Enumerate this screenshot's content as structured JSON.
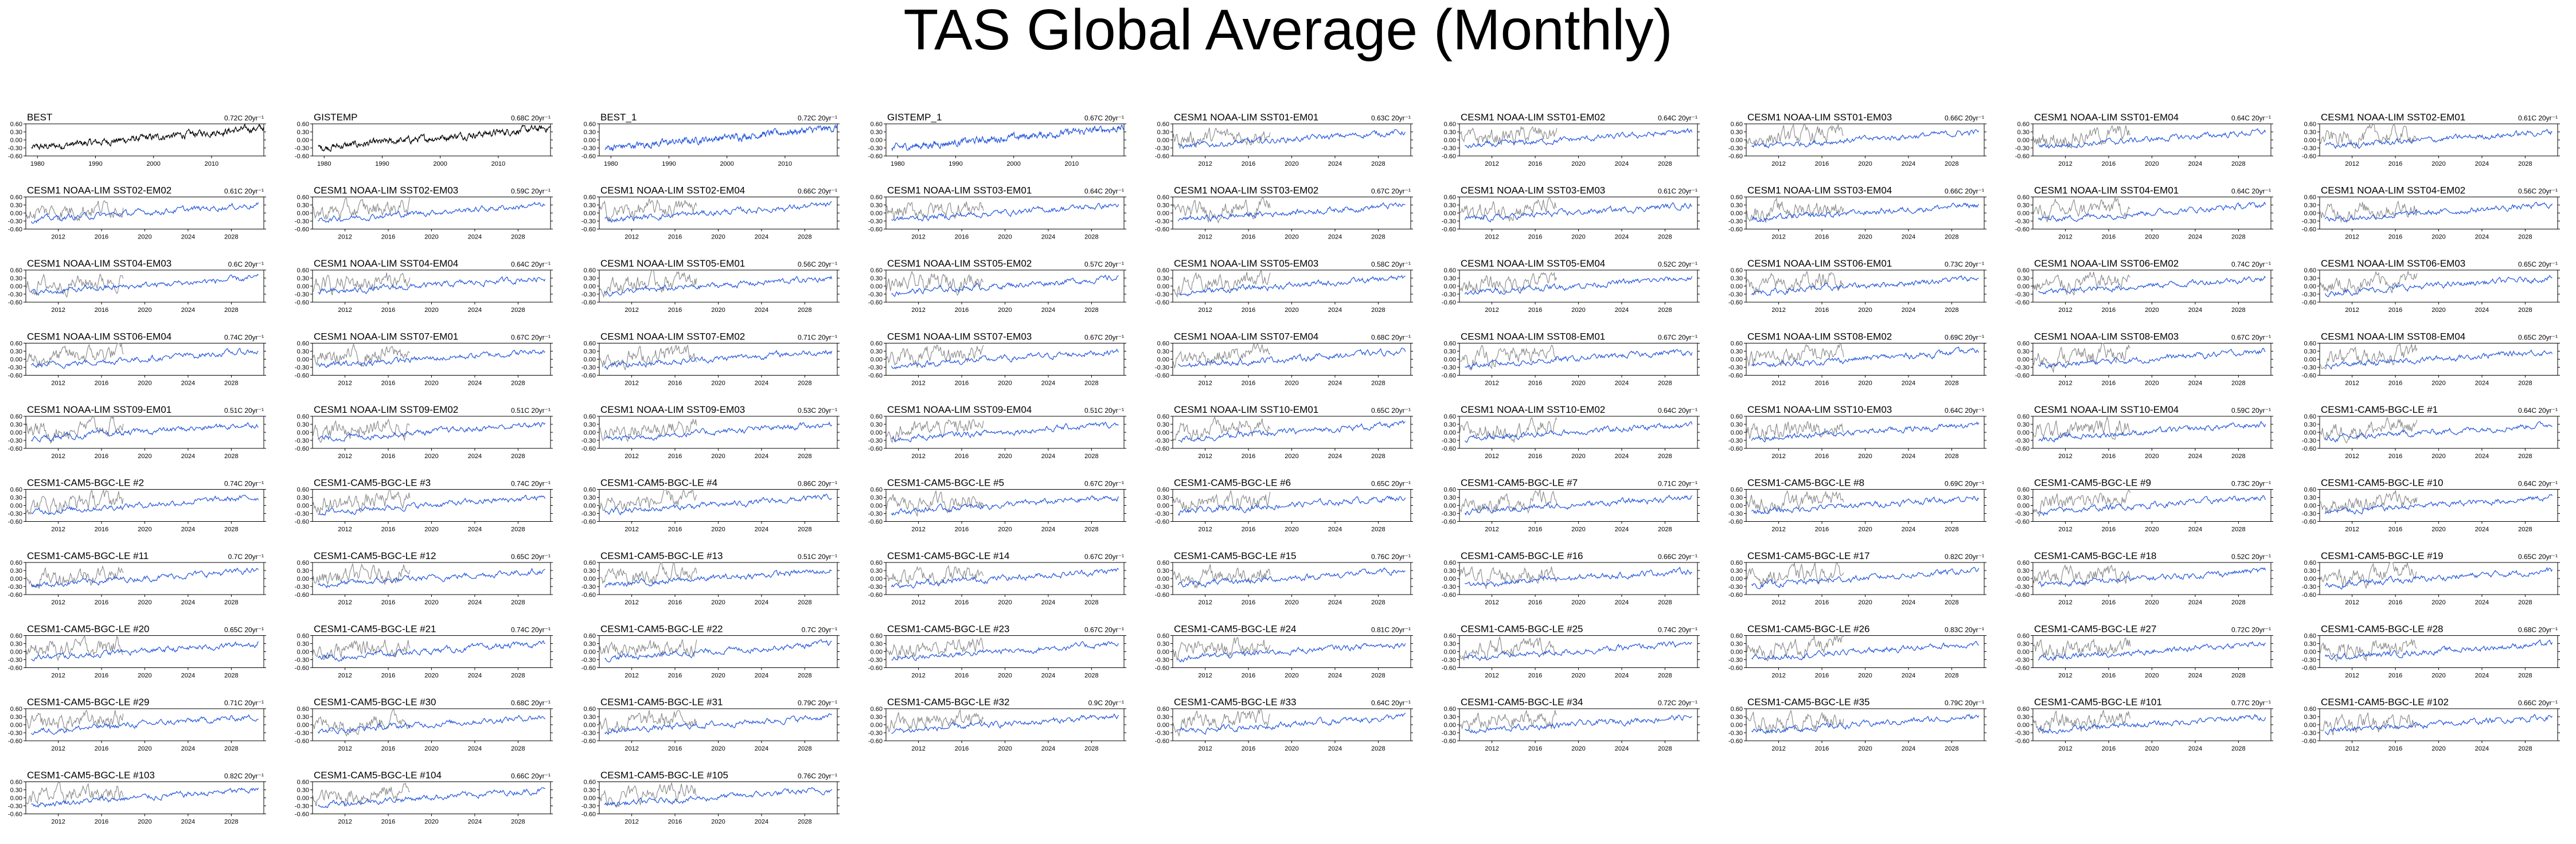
{
  "title": "TAS Global Average (Monthly)",
  "chart_data": {
    "type": "line",
    "title": "TAS Global Average (Monthly)",
    "colors": {
      "observed": "#000000",
      "model": "#2255dd",
      "observed_overlay": "#888888"
    },
    "y_ticks": [
      0.6,
      0.3,
      0.0,
      -0.3,
      -0.6
    ],
    "y_tick_labels": [
      "0.60",
      "0.30",
      "0.00",
      "-0.30",
      "-0.60"
    ],
    "ylim": [
      -0.6,
      0.6
    ],
    "observation_panels": {
      "x_ticks": [
        1980,
        1990,
        2000,
        2010
      ],
      "x_tick_labels": [
        "1980",
        "1990",
        "2000",
        "2010"
      ],
      "xlim": [
        1978,
        2019
      ]
    },
    "model_panels": {
      "x_ticks": [
        2012,
        2016,
        2020,
        2024,
        2028
      ],
      "x_tick_labels": [
        "2012",
        "2016",
        "2020",
        "2024",
        "2028"
      ],
      "xlim": [
        2009,
        2031
      ],
      "overlay_xlim": [
        2009,
        2018
      ]
    },
    "panels": [
      {
        "name": "BEST",
        "trend": "0.72C 20yr⁻¹",
        "kind": "obs"
      },
      {
        "name": "GISTEMP",
        "trend": "0.68C 20yr⁻¹",
        "kind": "obs"
      },
      {
        "name": "BEST_1",
        "trend": "0.72C 20yr⁻¹",
        "kind": "obs_blue"
      },
      {
        "name": "GISTEMP_1",
        "trend": "0.67C 20yr⁻¹",
        "kind": "obs_blue"
      },
      {
        "name": "CESM1 NOAA-LIM SST01-EM01",
        "trend": "0.63C 20yr⁻¹",
        "kind": "model"
      },
      {
        "name": "CESM1 NOAA-LIM SST01-EM02",
        "trend": "0.64C 20yr⁻¹",
        "kind": "model"
      },
      {
        "name": "CESM1 NOAA-LIM SST01-EM03",
        "trend": "0.66C 20yr⁻¹",
        "kind": "model"
      },
      {
        "name": "CESM1 NOAA-LIM SST01-EM04",
        "trend": "0.64C 20yr⁻¹",
        "kind": "model"
      },
      {
        "name": "CESM1 NOAA-LIM SST02-EM01",
        "trend": "0.61C 20yr⁻¹",
        "kind": "model"
      },
      {
        "name": "CESM1 NOAA-LIM SST02-EM02",
        "trend": "0.61C 20yr⁻¹",
        "kind": "model"
      },
      {
        "name": "CESM1 NOAA-LIM SST02-EM03",
        "trend": "0.59C 20yr⁻¹",
        "kind": "model"
      },
      {
        "name": "CESM1 NOAA-LIM SST02-EM04",
        "trend": "0.66C 20yr⁻¹",
        "kind": "model"
      },
      {
        "name": "CESM1 NOAA-LIM SST03-EM01",
        "trend": "0.64C 20yr⁻¹",
        "kind": "model"
      },
      {
        "name": "CESM1 NOAA-LIM SST03-EM02",
        "trend": "0.67C 20yr⁻¹",
        "kind": "model"
      },
      {
        "name": "CESM1 NOAA-LIM SST03-EM03",
        "trend": "0.61C 20yr⁻¹",
        "kind": "model"
      },
      {
        "name": "CESM1 NOAA-LIM SST03-EM04",
        "trend": "0.66C 20yr⁻¹",
        "kind": "model"
      },
      {
        "name": "CESM1 NOAA-LIM SST04-EM01",
        "trend": "0.64C 20yr⁻¹",
        "kind": "model"
      },
      {
        "name": "CESM1 NOAA-LIM SST04-EM02",
        "trend": "0.56C 20yr⁻¹",
        "kind": "model"
      },
      {
        "name": "CESM1 NOAA-LIM SST04-EM03",
        "trend": "0.6C 20yr⁻¹",
        "kind": "model"
      },
      {
        "name": "CESM1 NOAA-LIM SST04-EM04",
        "trend": "0.64C 20yr⁻¹",
        "kind": "model"
      },
      {
        "name": "CESM1 NOAA-LIM SST05-EM01",
        "trend": "0.56C 20yr⁻¹",
        "kind": "model"
      },
      {
        "name": "CESM1 NOAA-LIM SST05-EM02",
        "trend": "0.57C 20yr⁻¹",
        "kind": "model"
      },
      {
        "name": "CESM1 NOAA-LIM SST05-EM03",
        "trend": "0.58C 20yr⁻¹",
        "kind": "model"
      },
      {
        "name": "CESM1 NOAA-LIM SST05-EM04",
        "trend": "0.52C 20yr⁻¹",
        "kind": "model"
      },
      {
        "name": "CESM1 NOAA-LIM SST06-EM01",
        "trend": "0.73C 20yr⁻¹",
        "kind": "model"
      },
      {
        "name": "CESM1 NOAA-LIM SST06-EM02",
        "trend": "0.74C 20yr⁻¹",
        "kind": "model"
      },
      {
        "name": "CESM1 NOAA-LIM SST06-EM03",
        "trend": "0.65C 20yr⁻¹",
        "kind": "model"
      },
      {
        "name": "CESM1 NOAA-LIM SST06-EM04",
        "trend": "0.74C 20yr⁻¹",
        "kind": "model"
      },
      {
        "name": "CESM1 NOAA-LIM SST07-EM01",
        "trend": "0.67C 20yr⁻¹",
        "kind": "model"
      },
      {
        "name": "CESM1 NOAA-LIM SST07-EM02",
        "trend": "0.71C 20yr⁻¹",
        "kind": "model"
      },
      {
        "name": "CESM1 NOAA-LIM SST07-EM03",
        "trend": "0.67C 20yr⁻¹",
        "kind": "model"
      },
      {
        "name": "CESM1 NOAA-LIM SST07-EM04",
        "trend": "0.68C 20yr⁻¹",
        "kind": "model"
      },
      {
        "name": "CESM1 NOAA-LIM SST08-EM01",
        "trend": "0.67C 20yr⁻¹",
        "kind": "model"
      },
      {
        "name": "CESM1 NOAA-LIM SST08-EM02",
        "trend": "0.69C 20yr⁻¹",
        "kind": "model"
      },
      {
        "name": "CESM1 NOAA-LIM SST08-EM03",
        "trend": "0.67C 20yr⁻¹",
        "kind": "model"
      },
      {
        "name": "CESM1 NOAA-LIM SST08-EM04",
        "trend": "0.65C 20yr⁻¹",
        "kind": "model"
      },
      {
        "name": "CESM1 NOAA-LIM SST09-EM01",
        "trend": "0.51C 20yr⁻¹",
        "kind": "model"
      },
      {
        "name": "CESM1 NOAA-LIM SST09-EM02",
        "trend": "0.51C 20yr⁻¹",
        "kind": "model"
      },
      {
        "name": "CESM1 NOAA-LIM SST09-EM03",
        "trend": "0.53C 20yr⁻¹",
        "kind": "model"
      },
      {
        "name": "CESM1 NOAA-LIM SST09-EM04",
        "trend": "0.51C 20yr⁻¹",
        "kind": "model"
      },
      {
        "name": "CESM1 NOAA-LIM SST10-EM01",
        "trend": "0.65C 20yr⁻¹",
        "kind": "model"
      },
      {
        "name": "CESM1 NOAA-LIM SST10-EM02",
        "trend": "0.64C 20yr⁻¹",
        "kind": "model"
      },
      {
        "name": "CESM1 NOAA-LIM SST10-EM03",
        "trend": "0.64C 20yr⁻¹",
        "kind": "model"
      },
      {
        "name": "CESM1 NOAA-LIM SST10-EM04",
        "trend": "0.59C 20yr⁻¹",
        "kind": "model"
      },
      {
        "name": "CESM1-CAM5-BGC-LE #1",
        "trend": "0.64C 20yr⁻¹",
        "kind": "model"
      },
      {
        "name": "CESM1-CAM5-BGC-LE #2",
        "trend": "0.74C 20yr⁻¹",
        "kind": "model"
      },
      {
        "name": "CESM1-CAM5-BGC-LE #3",
        "trend": "0.74C 20yr⁻¹",
        "kind": "model"
      },
      {
        "name": "CESM1-CAM5-BGC-LE #4",
        "trend": "0.86C 20yr⁻¹",
        "kind": "model"
      },
      {
        "name": "CESM1-CAM5-BGC-LE #5",
        "trend": "0.67C 20yr⁻¹",
        "kind": "model"
      },
      {
        "name": "CESM1-CAM5-BGC-LE #6",
        "trend": "0.65C 20yr⁻¹",
        "kind": "model"
      },
      {
        "name": "CESM1-CAM5-BGC-LE #7",
        "trend": "0.71C 20yr⁻¹",
        "kind": "model"
      },
      {
        "name": "CESM1-CAM5-BGC-LE #8",
        "trend": "0.69C 20yr⁻¹",
        "kind": "model"
      },
      {
        "name": "CESM1-CAM5-BGC-LE #9",
        "trend": "0.73C 20yr⁻¹",
        "kind": "model"
      },
      {
        "name": "CESM1-CAM5-BGC-LE #10",
        "trend": "0.64C 20yr⁻¹",
        "kind": "model"
      },
      {
        "name": "CESM1-CAM5-BGC-LE #11",
        "trend": "0.7C 20yr⁻¹",
        "kind": "model"
      },
      {
        "name": "CESM1-CAM5-BGC-LE #12",
        "trend": "0.65C 20yr⁻¹",
        "kind": "model"
      },
      {
        "name": "CESM1-CAM5-BGC-LE #13",
        "trend": "0.51C 20yr⁻¹",
        "kind": "model"
      },
      {
        "name": "CESM1-CAM5-BGC-LE #14",
        "trend": "0.67C 20yr⁻¹",
        "kind": "model"
      },
      {
        "name": "CESM1-CAM5-BGC-LE #15",
        "trend": "0.76C 20yr⁻¹",
        "kind": "model"
      },
      {
        "name": "CESM1-CAM5-BGC-LE #16",
        "trend": "0.66C 20yr⁻¹",
        "kind": "model"
      },
      {
        "name": "CESM1-CAM5-BGC-LE #17",
        "trend": "0.82C 20yr⁻¹",
        "kind": "model"
      },
      {
        "name": "CESM1-CAM5-BGC-LE #18",
        "trend": "0.52C 20yr⁻¹",
        "kind": "model"
      },
      {
        "name": "CESM1-CAM5-BGC-LE #19",
        "trend": "0.65C 20yr⁻¹",
        "kind": "model"
      },
      {
        "name": "CESM1-CAM5-BGC-LE #20",
        "trend": "0.65C 20yr⁻¹",
        "kind": "model"
      },
      {
        "name": "CESM1-CAM5-BGC-LE #21",
        "trend": "0.74C 20yr⁻¹",
        "kind": "model"
      },
      {
        "name": "CESM1-CAM5-BGC-LE #22",
        "trend": "0.7C 20yr⁻¹",
        "kind": "model"
      },
      {
        "name": "CESM1-CAM5-BGC-LE #23",
        "trend": "0.67C 20yr⁻¹",
        "kind": "model"
      },
      {
        "name": "CESM1-CAM5-BGC-LE #24",
        "trend": "0.81C 20yr⁻¹",
        "kind": "model"
      },
      {
        "name": "CESM1-CAM5-BGC-LE #25",
        "trend": "0.74C 20yr⁻¹",
        "kind": "model"
      },
      {
        "name": "CESM1-CAM5-BGC-LE #26",
        "trend": "0.83C 20yr⁻¹",
        "kind": "model"
      },
      {
        "name": "CESM1-CAM5-BGC-LE #27",
        "trend": "0.72C 20yr⁻¹",
        "kind": "model"
      },
      {
        "name": "CESM1-CAM5-BGC-LE #28",
        "trend": "0.68C 20yr⁻¹",
        "kind": "model"
      },
      {
        "name": "CESM1-CAM5-BGC-LE #29",
        "trend": "0.71C 20yr⁻¹",
        "kind": "model"
      },
      {
        "name": "CESM1-CAM5-BGC-LE #30",
        "trend": "0.68C 20yr⁻¹",
        "kind": "model"
      },
      {
        "name": "CESM1-CAM5-BGC-LE #31",
        "trend": "0.79C 20yr⁻¹",
        "kind": "model"
      },
      {
        "name": "CESM1-CAM5-BGC-LE #32",
        "trend": "0.9C 20yr⁻¹",
        "kind": "model"
      },
      {
        "name": "CESM1-CAM5-BGC-LE #33",
        "trend": "0.64C 20yr⁻¹",
        "kind": "model"
      },
      {
        "name": "CESM1-CAM5-BGC-LE #34",
        "trend": "0.72C 20yr⁻¹",
        "kind": "model"
      },
      {
        "name": "CESM1-CAM5-BGC-LE #35",
        "trend": "0.79C 20yr⁻¹",
        "kind": "model"
      },
      {
        "name": "CESM1-CAM5-BGC-LE #101",
        "trend": "0.77C 20yr⁻¹",
        "kind": "model"
      },
      {
        "name": "CESM1-CAM5-BGC-LE #102",
        "trend": "0.66C 20yr⁻¹",
        "kind": "model"
      },
      {
        "name": "CESM1-CAM5-BGC-LE #103",
        "trend": "0.82C 20yr⁻¹",
        "kind": "model"
      },
      {
        "name": "CESM1-CAM5-BGC-LE #104",
        "trend": "0.66C 20yr⁻¹",
        "kind": "model"
      },
      {
        "name": "CESM1-CAM5-BGC-LE #105",
        "trend": "0.76C 20yr⁻¹",
        "kind": "model"
      }
    ]
  }
}
